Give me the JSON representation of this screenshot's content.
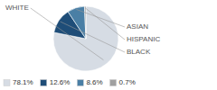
{
  "chart_data": {
    "type": "pie",
    "categories": [
      "WHITE",
      "BLACK",
      "ASIAN",
      "HISPANIC"
    ],
    "values": [
      78.1,
      12.6,
      8.6,
      0.7
    ],
    "value_labels": [
      "78.1%",
      "12.6%",
      "8.6%",
      "0.7%"
    ],
    "colors": [
      "#d6dce4",
      "#1e4d78",
      "#4a7fa5",
      "#a0a0a0"
    ],
    "legend": "lower left"
  }
}
